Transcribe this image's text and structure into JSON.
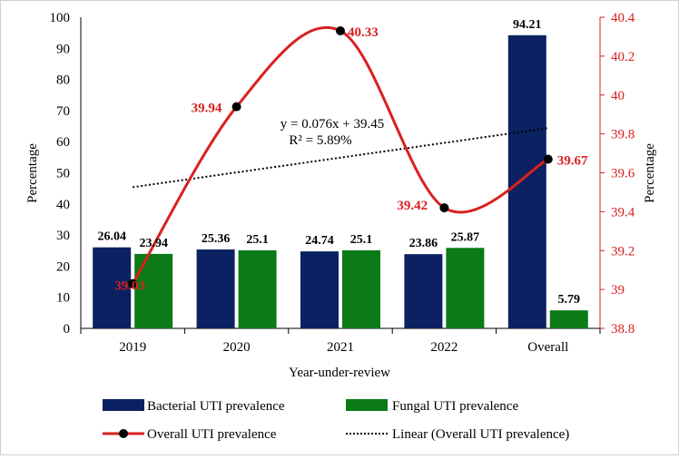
{
  "chart_data": {
    "type": "bar",
    "categories": [
      "2019",
      "2020",
      "2021",
      "2022",
      "Overall"
    ],
    "series": [
      {
        "name": "Bacterial UTI prevalence",
        "kind": "bar",
        "axis": "left",
        "color": "#0b2161",
        "values": [
          26.04,
          25.36,
          24.74,
          23.86,
          94.21
        ],
        "labels": [
          "26.04",
          "25.36",
          "24.74",
          "23.86",
          "94.21"
        ]
      },
      {
        "name": "Fungal UTI prevalence",
        "kind": "bar",
        "axis": "left",
        "color": "#0b7a17",
        "values": [
          23.94,
          25.1,
          25.1,
          25.87,
          5.79
        ],
        "labels": [
          "23.94",
          "25.1",
          "25.1",
          "25.87",
          "5.79"
        ]
      },
      {
        "name": "Overall UTI prevalence",
        "kind": "line",
        "axis": "right",
        "color": "#d9211f",
        "values": [
          39.03,
          39.94,
          40.33,
          39.42,
          39.67
        ],
        "labels": [
          "39.03",
          "39.94",
          "40.33",
          "39.42",
          "39.67"
        ]
      }
    ],
    "trendline": {
      "name": "Linear (Overall UTI prevalence)",
      "slope": 0.076,
      "intercept": 39.45,
      "equation": "y = 0.076x + 39.45",
      "r2": "R² = 5.89%"
    },
    "xlabel": "Year-under-review",
    "ylabel": "Percentage",
    "y2label": "Percentage",
    "ylim": [
      0,
      100
    ],
    "y2lim": [
      38.8,
      40.4
    ],
    "yticks": [
      "0",
      "10",
      "20",
      "30",
      "40",
      "50",
      "60",
      "70",
      "80",
      "90",
      "100"
    ],
    "y2ticks": [
      "38.8",
      "39",
      "39.2",
      "39.4",
      "39.6",
      "39.8",
      "40",
      "40.2",
      "40.4"
    ],
    "legend": "bottom",
    "grid": false
  }
}
